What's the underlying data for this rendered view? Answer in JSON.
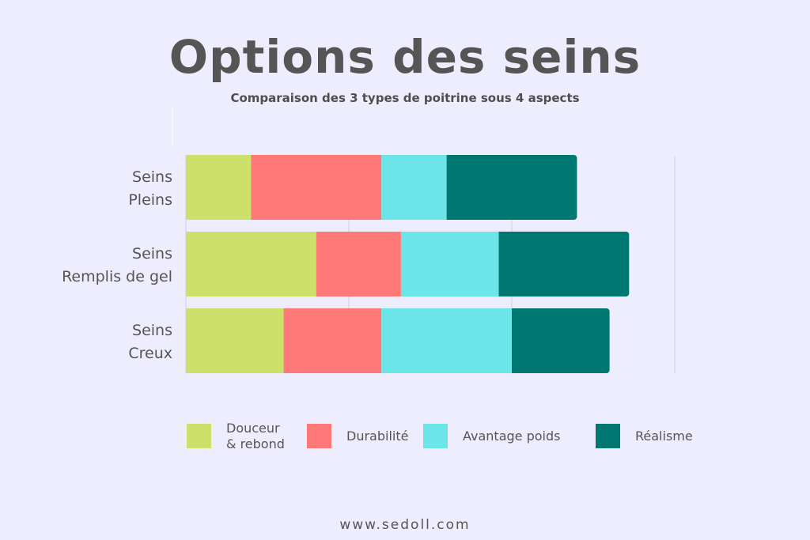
{
  "title": "Options des seins",
  "subtitle": "Comparaison des 3 types de poitrine sous 4 aspects",
  "footer": "www.sedoll.com",
  "colors": {
    "douceur": "#cce06a",
    "durabilite": "#fe7878",
    "avantage": "#6ce5e8",
    "realisme": "#007872",
    "background": "#eeedfd",
    "grid": "#cfcfdc"
  },
  "chart_data": {
    "type": "bar",
    "orientation": "horizontal",
    "stacked": true,
    "title": "Options des seins",
    "subtitle": "Comparaison des 3 types de poitrine sous 4 aspects",
    "categories": [
      [
        "Seins",
        "Pleins"
      ],
      [
        "Seins",
        "Remplis de gel"
      ],
      [
        "Seins",
        "Creux"
      ]
    ],
    "series": [
      {
        "name": "Douceur\n& rebond",
        "color": "#cce06a",
        "values": [
          2,
          4,
          3
        ]
      },
      {
        "name": "Durabilité",
        "color": "#fe7878",
        "values": [
          4,
          2.6,
          3
        ]
      },
      {
        "name": "Avantage poids",
        "color": "#6ce5e8",
        "values": [
          2,
          3,
          4
        ]
      },
      {
        "name": "Réalisme",
        "color": "#007872",
        "values": [
          4,
          4,
          3
        ]
      }
    ],
    "xlim": [
      0,
      15
    ],
    "grid": true,
    "legend_position": "bottom"
  }
}
